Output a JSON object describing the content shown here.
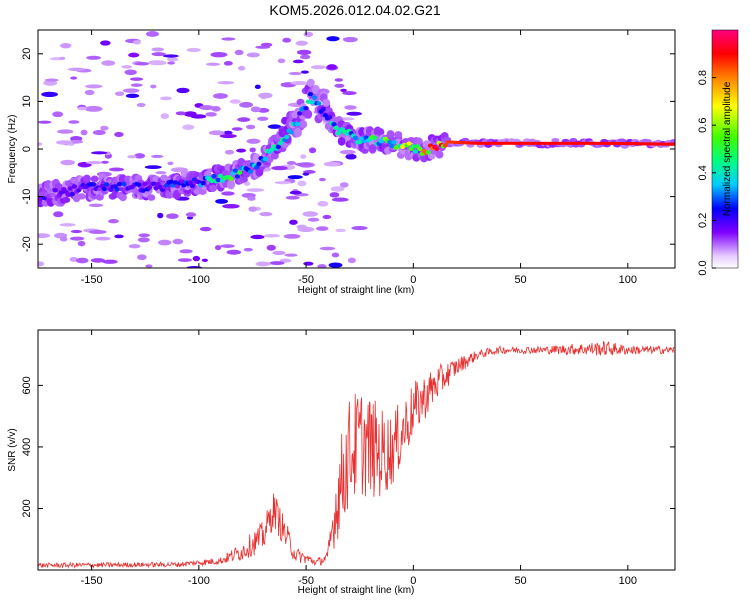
{
  "title": "KOM5.2026.012.04.02.G21",
  "colors": {
    "snr_line": "#e83030",
    "axis": "#000000",
    "background": "#ffffff"
  },
  "chart_data": [
    {
      "type": "heatmap",
      "name": "spectrogram",
      "xlabel": "Height of straight line (km)",
      "ylabel": "Frequency (Hz)",
      "xlim": [
        -175,
        122
      ],
      "ylim": [
        -25,
        25
      ],
      "xticks": [
        -150,
        -100,
        -50,
        0,
        50,
        100
      ],
      "yticks": [
        -20,
        -10,
        0,
        10,
        20
      ],
      "colorbar": {
        "label": "Normalized spectral amplitude",
        "range": [
          0,
          1
        ],
        "ticks": [
          0.0,
          0.2,
          0.4,
          0.6,
          0.8
        ],
        "tick_labels": [
          "0.0",
          "0.2",
          "0.4",
          "0.6",
          "0.8"
        ]
      },
      "ridge": {
        "description_points_km_hz": [
          [
            -175,
            -10
          ],
          [
            -150,
            -8
          ],
          [
            -120,
            -8
          ],
          [
            -100,
            -7
          ],
          [
            -85,
            -5.5
          ],
          [
            -75,
            -4
          ],
          [
            -65,
            0
          ],
          [
            -55,
            5
          ],
          [
            -48,
            11
          ],
          [
            -42,
            8
          ],
          [
            -35,
            4
          ],
          [
            -25,
            2
          ],
          [
            -15,
            1.5
          ],
          [
            -5,
            0.8
          ],
          [
            5,
            -0.5
          ],
          [
            15,
            1.5
          ],
          [
            30,
            1.2
          ],
          [
            60,
            1.2
          ],
          [
            90,
            1.2
          ],
          [
            122,
            1.0
          ]
        ],
        "amplitude": [
          0.15,
          0.2,
          0.2,
          0.25,
          0.45,
          0.3,
          0.35,
          0.3,
          0.3,
          0.35,
          0.3,
          0.4,
          0.45,
          0.5,
          0.6,
          0.85,
          0.9,
          0.9,
          0.9,
          0.9
        ]
      }
    },
    {
      "type": "line",
      "name": "snr",
      "xlabel": "Height of straight line (km)",
      "ylabel": "SNR (v/v)",
      "xlim": [
        -175,
        122
      ],
      "ylim": [
        0,
        780
      ],
      "xticks": [
        -150,
        -100,
        -50,
        0,
        50,
        100
      ],
      "yticks": [
        200,
        400,
        600
      ],
      "envelope_km_snr": [
        [
          -175,
          15
        ],
        [
          -110,
          18
        ],
        [
          -90,
          30
        ],
        [
          -80,
          60
        ],
        [
          -70,
          110
        ],
        [
          -65,
          200
        ],
        [
          -60,
          120
        ],
        [
          -55,
          50
        ],
        [
          -45,
          25
        ],
        [
          -40,
          40
        ],
        [
          -35,
          250
        ],
        [
          -30,
          380
        ],
        [
          -25,
          420
        ],
        [
          -20,
          400
        ],
        [
          -15,
          380
        ],
        [
          -10,
          390
        ],
        [
          -5,
          450
        ],
        [
          0,
          520
        ],
        [
          10,
          600
        ],
        [
          20,
          660
        ],
        [
          30,
          700
        ],
        [
          40,
          715
        ],
        [
          60,
          715
        ],
        [
          90,
          720
        ],
        [
          100,
          715
        ],
        [
          122,
          715
        ]
      ],
      "noise_amplitude": [
        8,
        8,
        12,
        30,
        50,
        60,
        50,
        25,
        12,
        20,
        150,
        180,
        180,
        170,
        150,
        120,
        110,
        90,
        60,
        30,
        15,
        12,
        12,
        25,
        15,
        12
      ]
    }
  ]
}
